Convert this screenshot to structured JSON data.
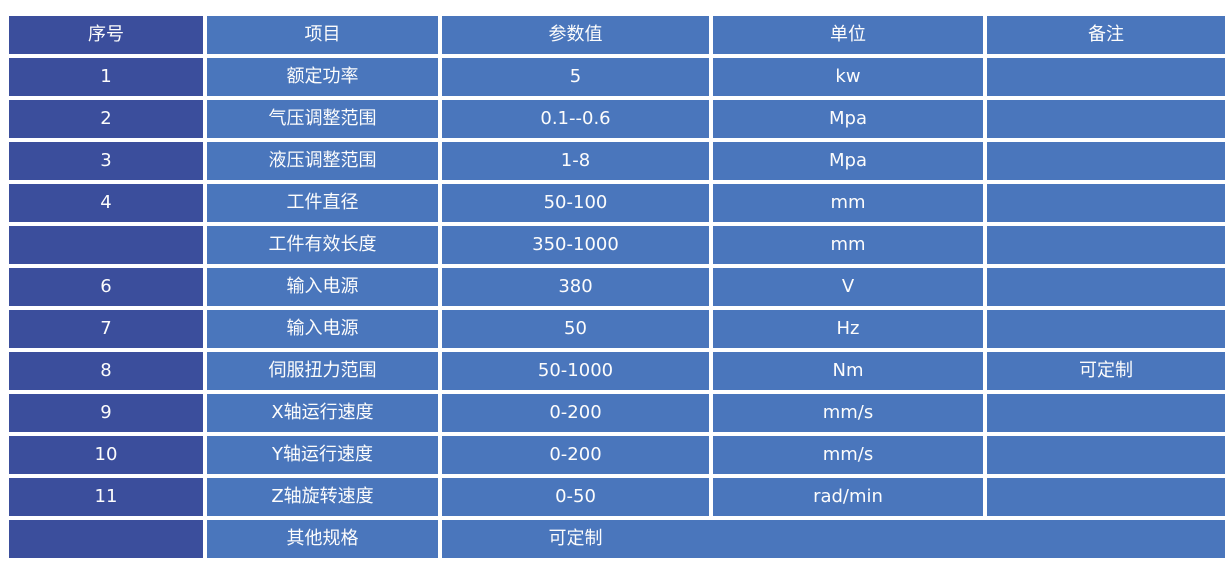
{
  "table": {
    "headers": [
      "序号",
      "项目",
      "参数值",
      "单位",
      "备注"
    ],
    "rows": [
      {
        "no": "1",
        "item": "额定功率",
        "value": "5",
        "unit": "kw",
        "note": ""
      },
      {
        "no": "2",
        "item": "气压调整范围",
        "value": "0.1--0.6",
        "unit": "Mpa",
        "note": ""
      },
      {
        "no": "3",
        "item": "液压调整范围",
        "value": "1-8",
        "unit": "Mpa",
        "note": ""
      },
      {
        "no": "4",
        "item": "工件直径",
        "value": "50-100",
        "unit": "mm",
        "note": ""
      },
      {
        "no": "",
        "item": "工件有效长度",
        "value": "350-1000",
        "unit": "mm",
        "note": ""
      },
      {
        "no": "6",
        "item": "输入电源",
        "value": "380",
        "unit": "V",
        "note": ""
      },
      {
        "no": "7",
        "item": "输入电源",
        "value": "50",
        "unit": "Hz",
        "note": ""
      },
      {
        "no": "8",
        "item": "伺服扭力范围",
        "value": "50-1000",
        "unit": "Nm",
        "note": "可定制"
      },
      {
        "no": "9",
        "item": "X轴运行速度",
        "value": "0-200",
        "unit": "mm/s",
        "note": ""
      },
      {
        "no": "10",
        "item": "Y轴运行速度",
        "value": "0-200",
        "unit": "mm/s",
        "note": ""
      },
      {
        "no": "11",
        "item": "Z轴旋转速度",
        "value": "0-50",
        "unit": "rad/min",
        "note": ""
      },
      {
        "no": "",
        "item": "其他规格",
        "value": "可定制",
        "merged_span": true
      }
    ]
  },
  "colors": {
    "serial_cell": "#3B4E9C",
    "body_cell": "#4A76BC",
    "grid_gap": "#FFFFFF",
    "text": "#FCFCFC"
  }
}
